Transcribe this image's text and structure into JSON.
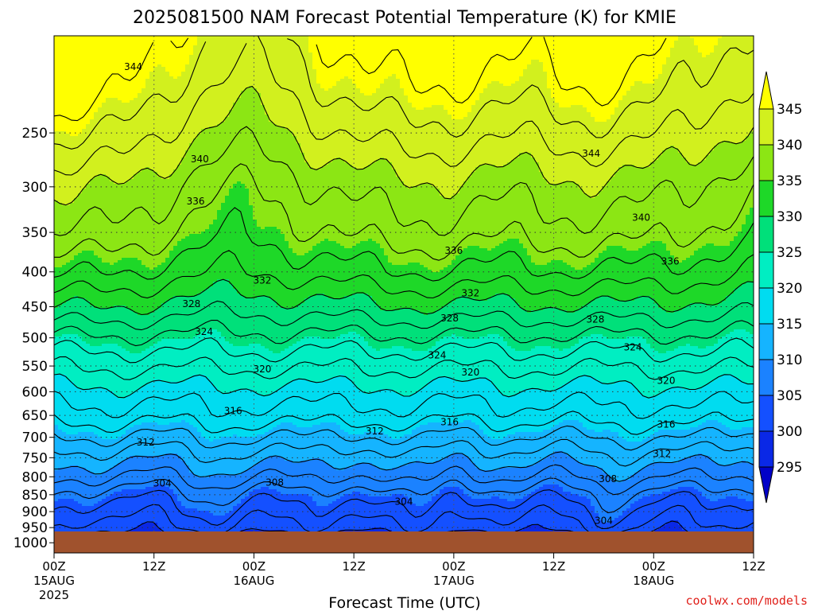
{
  "page": {
    "title": "2025081500 NAM Forecast Potential Temperature (K) for KMIE",
    "credit": "coolwx.com/models"
  },
  "chart_data": {
    "type": "heatmap",
    "title": "2025081500 NAM Forecast Potential Temperature (K) for KMIE",
    "xlabel": "Forecast Time (UTC)",
    "ylabel": "",
    "xlim": [
      0,
      84
    ],
    "ylim": [
      1035,
      180
    ],
    "y_scale": "log",
    "grid": true,
    "x_ticks": [
      {
        "hour": 0,
        "label": "00Z",
        "date": "15AUG",
        "year": "2025"
      },
      {
        "hour": 12,
        "label": "12Z",
        "date": "",
        "year": ""
      },
      {
        "hour": 24,
        "label": "00Z",
        "date": "16AUG",
        "year": ""
      },
      {
        "hour": 36,
        "label": "12Z",
        "date": "",
        "year": ""
      },
      {
        "hour": 48,
        "label": "00Z",
        "date": "17AUG",
        "year": ""
      },
      {
        "hour": 60,
        "label": "12Z",
        "date": "",
        "year": ""
      },
      {
        "hour": 72,
        "label": "00Z",
        "date": "18AUG",
        "year": ""
      },
      {
        "hour": 84,
        "label": "12Z",
        "date": "",
        "year": ""
      }
    ],
    "y_ticks": [
      250,
      300,
      350,
      400,
      450,
      500,
      550,
      600,
      650,
      700,
      750,
      800,
      850,
      900,
      950,
      1000
    ],
    "colorbar": {
      "levels": [
        295,
        300,
        305,
        310,
        315,
        320,
        325,
        330,
        335,
        340,
        345
      ],
      "labels": [
        "295",
        "300",
        "305",
        "310",
        "315",
        "320",
        "325",
        "330",
        "335",
        "340",
        "345"
      ],
      "colors": [
        "#0000c8",
        "#0a28e6",
        "#1450ff",
        "#1b82ff",
        "#15b4ff",
        "#00dcf0",
        "#00eec2",
        "#00e07a",
        "#1ed828",
        "#8ce614",
        "#d2f01e",
        "#ffff00"
      ]
    },
    "surface_color": "#a0522d",
    "contour_interval": 2,
    "theta_profile": [
      {
        "p": 180,
        "theta": 346.5
      },
      {
        "p": 215,
        "theta": 344.5
      },
      {
        "p": 250,
        "theta": 342.0
      },
      {
        "p": 300,
        "theta": 338.5
      },
      {
        "p": 350,
        "theta": 336.3
      },
      {
        "p": 400,
        "theta": 333.3
      },
      {
        "p": 450,
        "theta": 329.5
      },
      {
        "p": 500,
        "theta": 325.5
      },
      {
        "p": 550,
        "theta": 322.3
      },
      {
        "p": 600,
        "theta": 319.3
      },
      {
        "p": 650,
        "theta": 317.0
      },
      {
        "p": 700,
        "theta": 314.0
      },
      {
        "p": 750,
        "theta": 311.0
      },
      {
        "p": 800,
        "theta": 308.3
      },
      {
        "p": 850,
        "theta": 305.3
      },
      {
        "p": 900,
        "theta": 303.3
      },
      {
        "p": 950,
        "theta": 301.5
      },
      {
        "p": 980,
        "theta": 299.5
      }
    ],
    "contour_labels": [
      {
        "text": "344",
        "hour": 9.5,
        "p": 200
      },
      {
        "text": "344",
        "hour": 64.5,
        "p": 268
      },
      {
        "text": "340",
        "hour": 17.5,
        "p": 273
      },
      {
        "text": "340",
        "hour": 70.5,
        "p": 333
      },
      {
        "text": "336",
        "hour": 17,
        "p": 315
      },
      {
        "text": "336",
        "hour": 48,
        "p": 372
      },
      {
        "text": "336",
        "hour": 74,
        "p": 386
      },
      {
        "text": "332",
        "hour": 25,
        "p": 412
      },
      {
        "text": "332",
        "hour": 50,
        "p": 430
      },
      {
        "text": "328",
        "hour": 16.5,
        "p": 446
      },
      {
        "text": "328",
        "hour": 47.5,
        "p": 468
      },
      {
        "text": "328",
        "hour": 65,
        "p": 470
      },
      {
        "text": "324",
        "hour": 18,
        "p": 490
      },
      {
        "text": "324",
        "hour": 46,
        "p": 530
      },
      {
        "text": "324",
        "hour": 69.5,
        "p": 516
      },
      {
        "text": "320",
        "hour": 25,
        "p": 556
      },
      {
        "text": "320",
        "hour": 50,
        "p": 562
      },
      {
        "text": "320",
        "hour": 73.5,
        "p": 578
      },
      {
        "text": "316",
        "hour": 21.5,
        "p": 640
      },
      {
        "text": "316",
        "hour": 47.5,
        "p": 665
      },
      {
        "text": "316",
        "hour": 73.5,
        "p": 670
      },
      {
        "text": "312",
        "hour": 38.5,
        "p": 686
      },
      {
        "text": "312",
        "hour": 11,
        "p": 712
      },
      {
        "text": "312",
        "hour": 73,
        "p": 740
      },
      {
        "text": "308",
        "hour": 26.5,
        "p": 816
      },
      {
        "text": "308",
        "hour": 66.5,
        "p": 806
      },
      {
        "text": "304",
        "hour": 13,
        "p": 818
      },
      {
        "text": "304",
        "hour": 42,
        "p": 870
      },
      {
        "text": "304",
        "hour": 66,
        "p": 928
      }
    ]
  }
}
